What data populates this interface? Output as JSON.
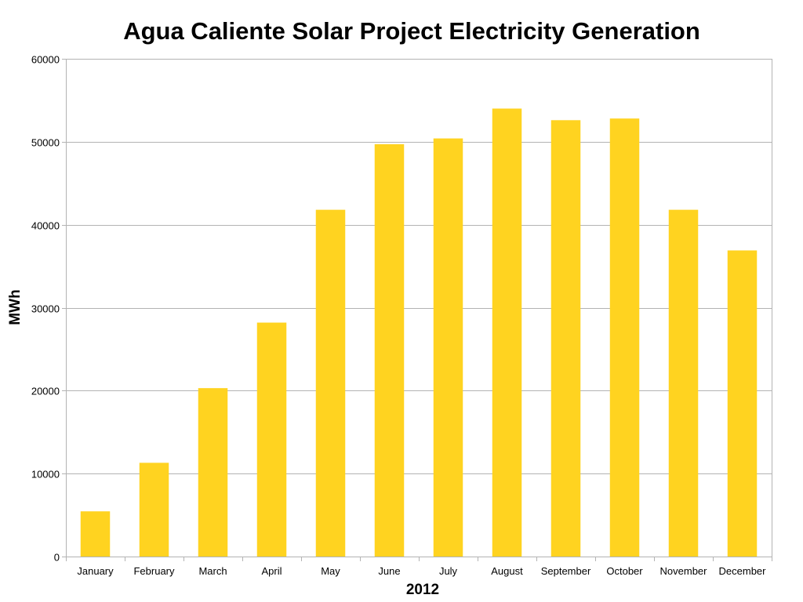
{
  "chart_data": {
    "type": "bar",
    "title": "Agua Caliente Solar Project Electricity Generation",
    "xlabel": "2012",
    "ylabel": "MWh",
    "categories": [
      "January",
      "February",
      "March",
      "April",
      "May",
      "June",
      "July",
      "August",
      "September",
      "October",
      "November",
      "December"
    ],
    "values": [
      5450,
      11300,
      20300,
      28200,
      41800,
      49700,
      50400,
      54000,
      52600,
      52800,
      41800,
      36900
    ],
    "ylim": [
      0,
      60000
    ],
    "yticks": [
      0,
      10000,
      20000,
      30000,
      40000,
      50000,
      60000
    ],
    "grid": true,
    "legend": "none",
    "bar_color": "#FFD320",
    "grid_color": "#B3B3B3"
  }
}
